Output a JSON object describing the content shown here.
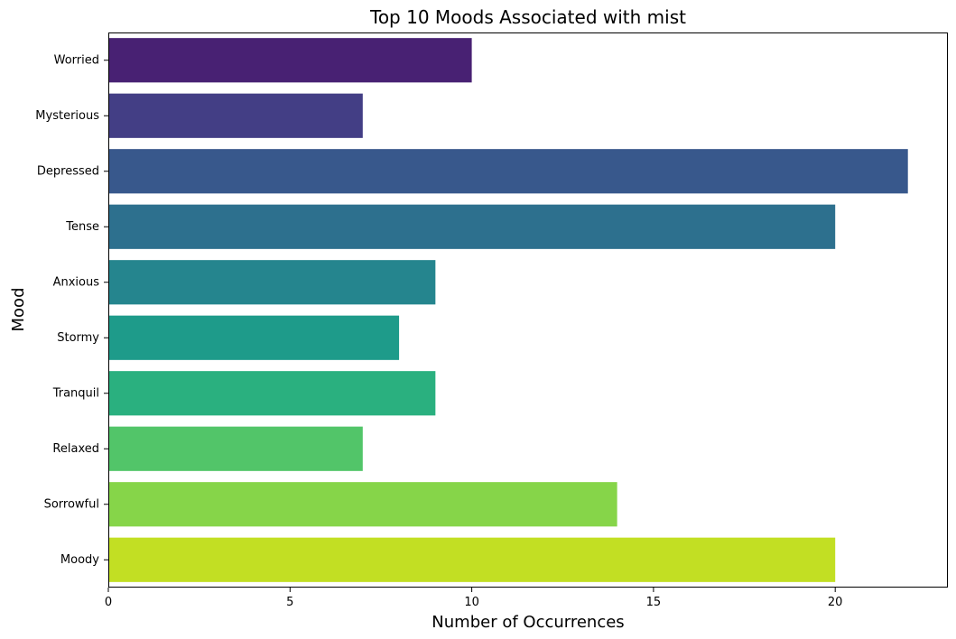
{
  "chart_data": {
    "type": "bar",
    "orientation": "horizontal",
    "title": "Top 10 Moods Associated with mist",
    "xlabel": "Number of Occurrences",
    "ylabel": "Mood",
    "categories": [
      "Worried",
      "Mysterious",
      "Depressed",
      "Tense",
      "Anxious",
      "Stormy",
      "Tranquil",
      "Relaxed",
      "Sorrowful",
      "Moody"
    ],
    "values": [
      10,
      7,
      22,
      20,
      9,
      8,
      9,
      7,
      14,
      20
    ],
    "colors": [
      "#482173",
      "#433e85",
      "#38588c",
      "#2d708e",
      "#25858e",
      "#1e9b8a",
      "#2ab07f",
      "#52c569",
      "#86d549",
      "#c2df23"
    ],
    "xlim": [
      0,
      23.1
    ],
    "xticks": [
      0,
      5,
      10,
      15,
      20
    ],
    "grid": false,
    "legend": "none"
  }
}
